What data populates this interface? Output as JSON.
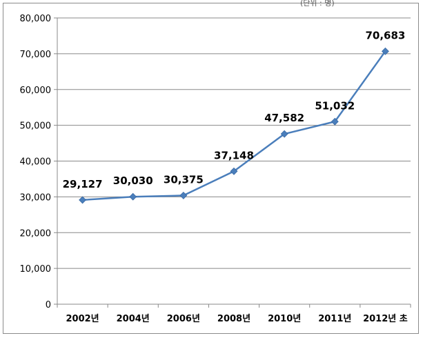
{
  "chart_data": {
    "type": "line",
    "title": "",
    "unit_note": "(단위 : 명)",
    "xlabel": "",
    "ylabel": "",
    "categories": [
      "2002년",
      "2004년",
      "2006년",
      "2008년",
      "2010년",
      "2011년",
      "2012년 초"
    ],
    "series": [
      {
        "values": [
          29127,
          30030,
          30375,
          37148,
          47582,
          51032,
          70683
        ],
        "data_labels": [
          "29,127",
          "30,030",
          "30,375",
          "37,148",
          "47,582",
          "51,032",
          "70,683"
        ]
      }
    ],
    "ylim": [
      0,
      80000
    ],
    "y_ticks": [
      0,
      10000,
      20000,
      30000,
      40000,
      50000,
      60000,
      70000,
      80000
    ],
    "y_tick_labels": [
      "0",
      "10,000",
      "20,000",
      "30,000",
      "40,000",
      "50,000",
      "60,000",
      "70,000",
      "80,000"
    ],
    "grid": true,
    "legend": "none",
    "colors": {
      "line": "#4A7EBB",
      "marker": "#4A7EBB",
      "grid": "#888888",
      "axis": "#888888"
    }
  }
}
